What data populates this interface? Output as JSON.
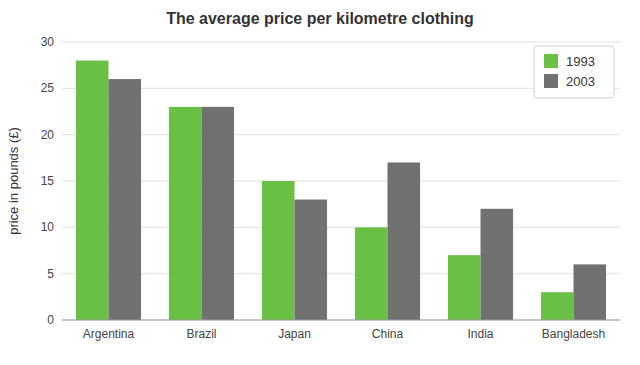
{
  "chart_data": {
    "type": "bar",
    "title": "The average price per kilometre clothing",
    "y_label": "price in pounds (£)",
    "categories": [
      "Argentina",
      "Brazil",
      "Japan",
      "China",
      "India",
      "Bangladesh"
    ],
    "series": [
      {
        "name": "1993",
        "color": "#6abf45",
        "values": [
          28,
          23,
          15,
          10,
          7,
          3
        ]
      },
      {
        "name": "2003",
        "color": "#717171",
        "values": [
          26,
          23,
          13,
          17,
          12,
          6
        ]
      }
    ],
    "ylim": [
      0,
      30
    ],
    "yticks": [
      0,
      5,
      10,
      15,
      20,
      25,
      30
    ],
    "grid": true,
    "legend": "upper right"
  }
}
